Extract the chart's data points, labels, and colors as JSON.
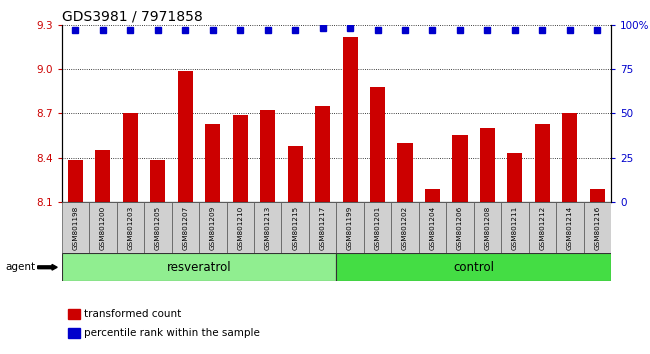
{
  "title": "GDS3981 / 7971858",
  "samples": [
    "GSM801198",
    "GSM801200",
    "GSM801203",
    "GSM801205",
    "GSM801207",
    "GSM801209",
    "GSM801210",
    "GSM801213",
    "GSM801215",
    "GSM801217",
    "GSM801199",
    "GSM801201",
    "GSM801202",
    "GSM801204",
    "GSM801206",
    "GSM801208",
    "GSM801211",
    "GSM801212",
    "GSM801214",
    "GSM801216"
  ],
  "transformed_counts": [
    8.38,
    8.45,
    8.7,
    8.38,
    8.99,
    8.63,
    8.69,
    8.72,
    8.48,
    8.75,
    9.22,
    8.88,
    8.5,
    8.19,
    8.55,
    8.6,
    8.43,
    8.63,
    8.7,
    8.19
  ],
  "percentile_ranks": [
    97,
    97,
    97,
    97,
    97,
    97,
    97,
    97,
    97,
    98,
    98,
    97,
    97,
    97,
    97,
    97,
    97,
    97,
    97,
    97
  ],
  "bar_color": "#cc0000",
  "dot_color": "#0000cc",
  "ylim_left": [
    8.1,
    9.3
  ],
  "ylim_right": [
    0,
    100
  ],
  "yticks_left": [
    8.1,
    8.4,
    8.7,
    9.0,
    9.3
  ],
  "yticks_right": [
    0,
    25,
    50,
    75,
    100
  ],
  "ylabel_left_color": "#cc0000",
  "ylabel_right_color": "#0000cc",
  "resv_color": "#90ee90",
  "ctrl_color": "#44dd44",
  "agent_label": "agent",
  "legend_bar_label": "transformed count",
  "legend_dot_label": "percentile rank within the sample",
  "bar_width": 0.55,
  "title_fontsize": 10,
  "tick_label_fontsize": 7.5,
  "group_label_fontsize": 8.5,
  "n_resveratrol": 10,
  "n_control": 10
}
